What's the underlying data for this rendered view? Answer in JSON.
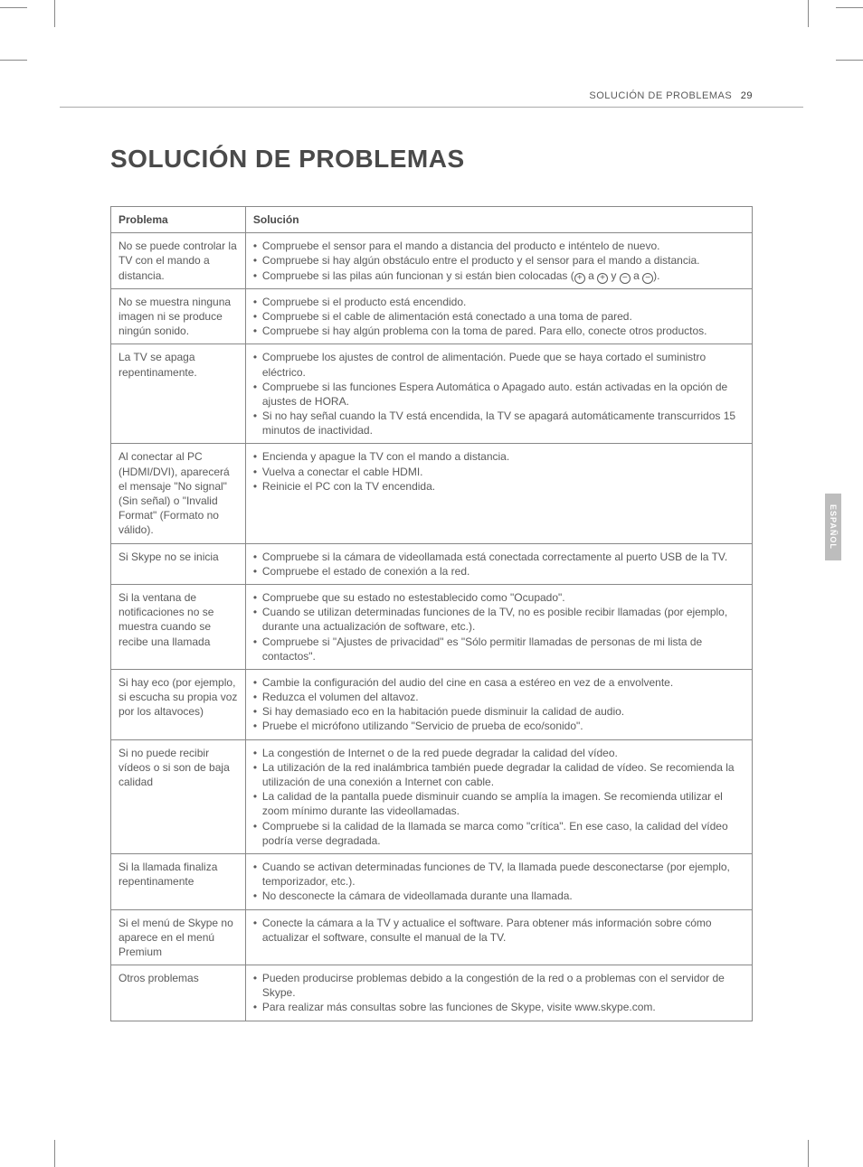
{
  "runningHead": {
    "section": "SOLUCIÓN DE PROBLEMAS",
    "page": "29"
  },
  "title": "SOLUCIÓN DE PROBLEMAS",
  "sideTab": "ESPAÑOL",
  "table": {
    "headers": {
      "problem": "Problema",
      "solution": "Solución"
    },
    "rows": [
      {
        "problem": "No se puede controlar la TV con el mando a distancia.",
        "solutions": [
          "Compruebe el sensor para el mando a distancia del producto e inténtelo de nuevo.",
          "Compruebe si hay algún obstáculo entre el producto y el sensor para el mando a distancia.",
          "Compruebe si las pilas aún funcionan y si están bien colocadas (⊕ a ⊕ y ⊖ a ⊖)."
        ]
      },
      {
        "problem": "No se muestra ninguna imagen ni se produce ningún sonido.",
        "solutions": [
          "Compruebe si el producto está encendido.",
          "Compruebe si el cable de alimentación está conectado a una toma de pared.",
          "Compruebe si hay algún problema con la toma de pared. Para ello, conecte otros productos."
        ]
      },
      {
        "problem": "La TV se apaga repentinamente.",
        "solutions": [
          "Compruebe los ajustes de control de alimentación. Puede que se haya cortado el suministro eléctrico.",
          "Compruebe si las funciones Espera Automática o Apagado auto. están activadas en la opción de ajustes de HORA.",
          "Si no hay señal cuando la TV está encendida, la TV se apagará automáticamente transcurridos 15 minutos de inactividad."
        ]
      },
      {
        "problem": "Al conectar al PC (HDMI/DVI), aparecerá el mensaje \"No signal\" (Sin señal) o \"Invalid Format\" (Formato no válido).",
        "solutions": [
          "Encienda y apague la TV con el mando a distancia.",
          "Vuelva a conectar el cable HDMI.",
          "Reinicie el PC con la TV encendida."
        ]
      },
      {
        "problem": "Si Skype no se inicia",
        "solutions": [
          "Compruebe si la cámara de videollamada está conectada correctamente al puerto USB de la TV.",
          "Compruebe el estado de conexión a la red."
        ]
      },
      {
        "problem": "Si la ventana de notificaciones no se muestra cuando se recibe una llamada",
        "solutions": [
          "Compruebe que su estado no estestablecido como \"Ocupado\".",
          "Cuando se utilizan determinadas funciones de la TV, no es posible recibir llamadas (por ejemplo, durante una actualización de software, etc.).",
          "Compruebe si \"Ajustes de privacidad\" es \"Sólo permitir llamadas de personas de mi lista de contactos\"."
        ]
      },
      {
        "problem": "Si hay eco (por ejemplo, si escucha su propia voz por los altavoces)",
        "solutions": [
          "Cambie la configuración del audio del cine en casa a estéreo en vez de a envolvente.",
          "Reduzca el volumen del altavoz.",
          "Si hay demasiado eco en la habitación puede disminuir la calidad de audio.",
          "Pruebe el micrófono utilizando \"Servicio de prueba de eco/sonido\"."
        ]
      },
      {
        "problem": "Si no puede recibir vídeos o si son de baja calidad",
        "solutions": [
          "La congestión de Internet o de la red puede degradar la calidad del vídeo.",
          "La utilización de la red inalámbrica también puede degradar la calidad de vídeo. Se recomienda la utilización de una conexión a Internet con cable.",
          "La calidad de la pantalla puede disminuir cuando se amplía la imagen. Se recomienda utilizar el zoom mínimo durante las videollamadas.",
          "Compruebe si la calidad de la llamada se marca como \"crítica\". En ese caso, la calidad del vídeo podría verse degradada."
        ]
      },
      {
        "problem": "Si la llamada finaliza repentinamente",
        "solutions": [
          "Cuando se activan determinadas funciones de TV, la llamada puede desconectarse (por ejemplo, temporizador, etc.).",
          "No desconecte la cámara de videollamada durante una llamada."
        ]
      },
      {
        "problem": "Si el menú de Skype no aparece en el menú Premium",
        "solutions": [
          "Conecte la cámara a la TV y actualice el software. Para obtener más información sobre cómo actualizar el software, consulte el manual de la TV."
        ]
      },
      {
        "problem": "Otros problemas",
        "solutions": [
          "Pueden producirse problemas debido a la congestión de la red o a problemas con el servidor de Skype.",
          "Para realizar más consultas sobre las funciones de Skype, visite www.skype.com."
        ]
      }
    ]
  }
}
